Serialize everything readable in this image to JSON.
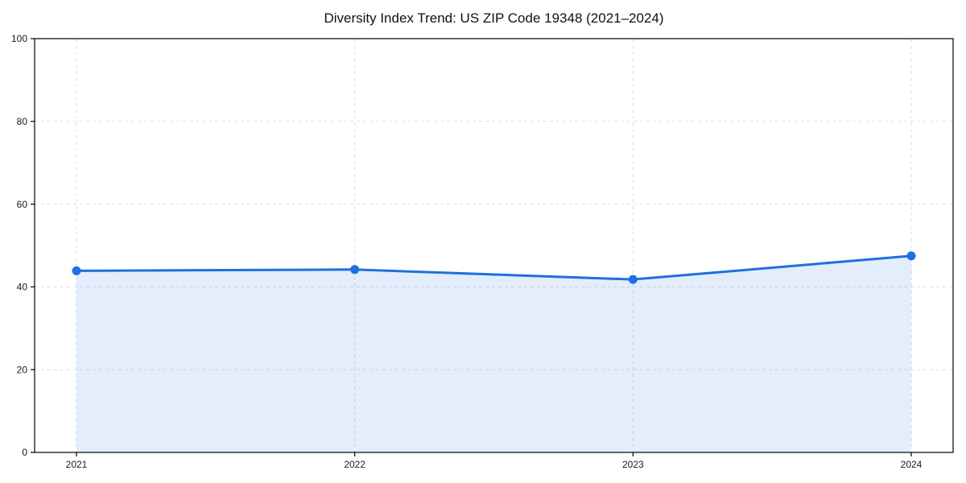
{
  "chart_data": {
    "type": "area",
    "title": "Diversity Index Trend: US ZIP Code 19348 (2021–2024)",
    "xlabel": "",
    "ylabel": "",
    "categories": [
      "2021",
      "2022",
      "2023",
      "2024"
    ],
    "series": [
      {
        "name": "Diversity Index",
        "values": [
          43.9,
          44.2,
          41.8,
          47.5
        ]
      }
    ],
    "ylim": [
      0,
      100
    ],
    "yticks": [
      0,
      20,
      40,
      60,
      80,
      100
    ],
    "grid": true,
    "grid_style": "dashed",
    "legend": "none",
    "colors": {
      "line": "#1f6fe0",
      "marker": "#1f6fe0",
      "fill": "rgba(31,111,224,0.12)",
      "grid": "#dcdcdc",
      "spine": "#000000",
      "tick_text": "#1a1a1a",
      "title_text": "#111111",
      "background": "#ffffff"
    }
  }
}
